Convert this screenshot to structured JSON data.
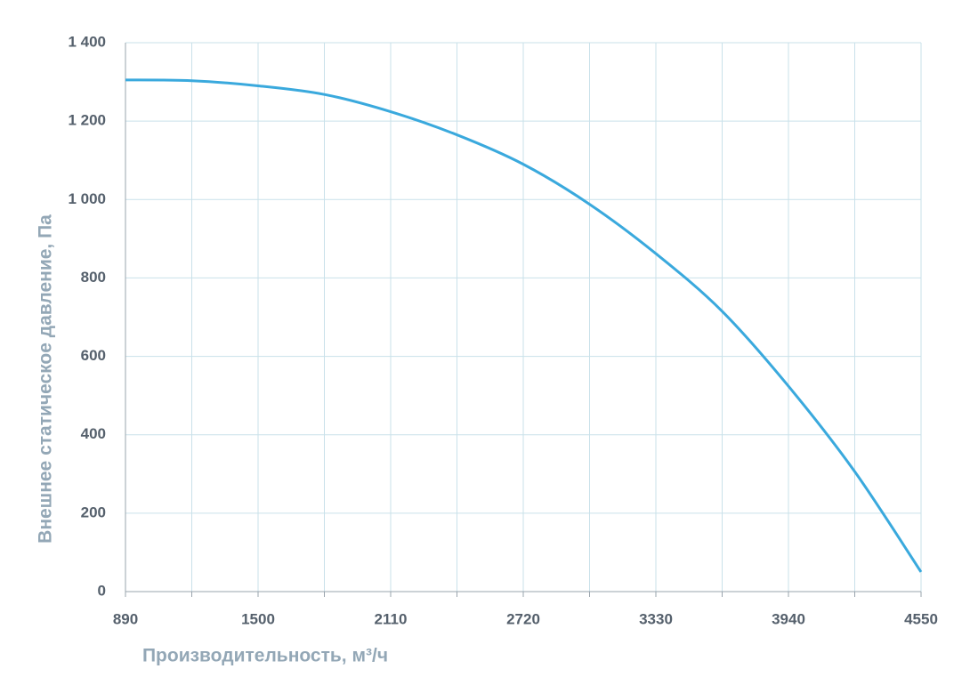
{
  "chart_data": {
    "type": "line",
    "x_label": "Производительность, м³/ч",
    "y_label": "Внешнее  статическое  давление, Па",
    "x": [
      890,
      1195,
      1500,
      1805,
      2110,
      2415,
      2720,
      3025,
      3330,
      3635,
      3940,
      4245,
      4550
    ],
    "series": [
      {
        "color": "#3aa9dd",
        "values": [
          1305,
          1303,
          1290,
          1268,
          1224,
          1165,
          1090,
          988,
          862,
          715,
          524,
          306,
          50
        ]
      }
    ],
    "xlim": [
      890,
      4550
    ],
    "xticks": [
      890,
      1500,
      2110,
      2720,
      3330,
      3940,
      4550
    ],
    "x_minor_grid": [
      1195,
      1805,
      2415,
      3025,
      3635,
      4245
    ],
    "ylim": [
      0,
      1400
    ],
    "yticks": [
      0,
      200,
      400,
      600,
      800,
      {
        "value": 1000,
        "label": "1 000"
      },
      {
        "value": 1200,
        "label": "1 200"
      },
      {
        "value": 1400,
        "label": "1 400"
      }
    ],
    "grid": true
  }
}
